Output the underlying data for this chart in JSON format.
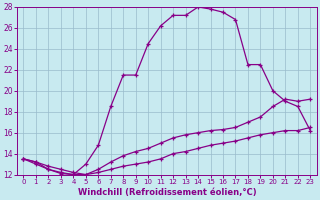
{
  "xlabel": "Windchill (Refroidissement éolien,°C)",
  "xlim": [
    -0.5,
    23.5
  ],
  "ylim": [
    12,
    28
  ],
  "xticks": [
    0,
    1,
    2,
    3,
    4,
    5,
    6,
    7,
    8,
    9,
    10,
    11,
    12,
    13,
    14,
    15,
    16,
    17,
    18,
    19,
    20,
    21,
    22,
    23
  ],
  "yticks": [
    12,
    14,
    16,
    18,
    20,
    22,
    24,
    26,
    28
  ],
  "bg_color": "#c8eaf0",
  "line_color": "#880088",
  "grid_color": "#99bbcc",
  "series": [
    {
      "x": [
        0,
        1,
        2,
        3,
        4,
        5,
        6,
        7,
        8,
        9,
        10,
        11,
        12,
        13,
        14,
        15,
        16,
        17,
        18,
        19,
        20,
        21,
        22,
        23
      ],
      "y": [
        13.5,
        13.2,
        12.5,
        12.1,
        12.0,
        13.0,
        14.8,
        18.5,
        21.5,
        21.5,
        24.5,
        26.2,
        27.2,
        27.2,
        28.0,
        27.8,
        27.5,
        26.8,
        22.5,
        22.5,
        20.0,
        19.0,
        18.5,
        16.2
      ]
    },
    {
      "x": [
        0,
        1,
        2,
        3,
        4,
        5,
        6,
        7,
        8,
        9,
        10,
        11,
        12,
        13,
        14,
        15,
        16,
        17,
        18,
        19,
        20,
        21,
        22,
        23
      ],
      "y": [
        13.5,
        13.2,
        12.8,
        12.5,
        12.2,
        12.0,
        12.5,
        13.2,
        13.8,
        14.2,
        14.5,
        15.0,
        15.5,
        15.8,
        16.0,
        16.2,
        16.3,
        16.5,
        17.0,
        17.5,
        18.5,
        19.2,
        19.0,
        19.2
      ]
    },
    {
      "x": [
        0,
        1,
        2,
        3,
        4,
        5,
        6,
        7,
        8,
        9,
        10,
        11,
        12,
        13,
        14,
        15,
        16,
        17,
        18,
        19,
        20,
        21,
        22,
        23
      ],
      "y": [
        13.5,
        13.0,
        12.5,
        12.2,
        12.0,
        12.0,
        12.2,
        12.5,
        12.8,
        13.0,
        13.2,
        13.5,
        14.0,
        14.2,
        14.5,
        14.8,
        15.0,
        15.2,
        15.5,
        15.8,
        16.0,
        16.2,
        16.2,
        16.5
      ]
    }
  ]
}
